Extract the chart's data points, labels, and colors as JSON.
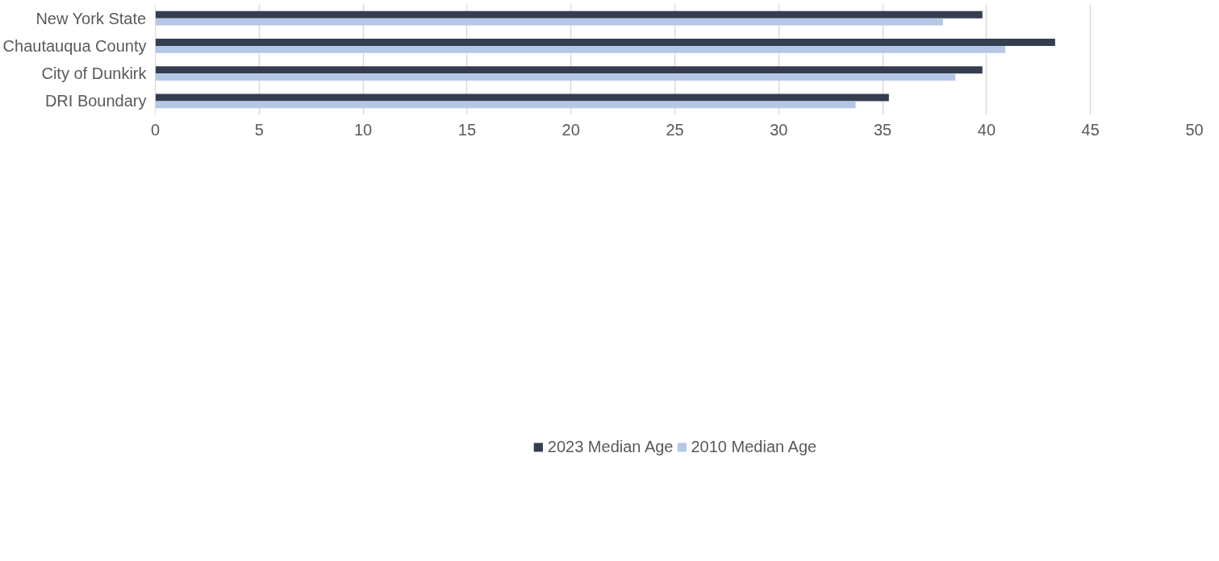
{
  "chart_data": {
    "type": "bar",
    "orientation": "horizontal",
    "categories": [
      "New York State",
      "Chautauqua County",
      "City of Dunkirk",
      "DRI Boundary"
    ],
    "series": [
      {
        "name": "2023 Median Age",
        "color": "#343e50",
        "values": [
          39.8,
          43.3,
          39.8,
          35.3
        ]
      },
      {
        "name": "2010 Median Age",
        "color": "#b4c7e7",
        "values": [
          37.9,
          40.9,
          38.5,
          33.7
        ]
      }
    ],
    "xlim": [
      0,
      50
    ],
    "xticks": [
      0,
      5,
      10,
      15,
      20,
      25,
      30,
      35,
      40,
      45,
      50
    ],
    "grid": "x",
    "legend": "bottom"
  }
}
